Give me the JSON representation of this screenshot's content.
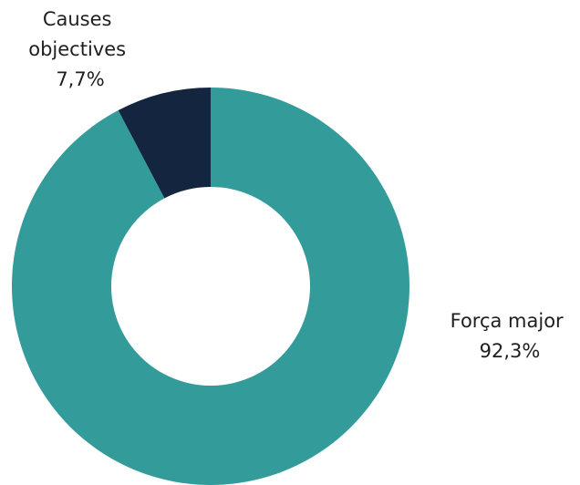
{
  "chart_data": {
    "type": "pie",
    "variant": "donut",
    "title": "",
    "slices": [
      {
        "name": "Causes objectives",
        "label_lines": [
          "Causes",
          "objectives"
        ],
        "value": 7.7,
        "value_label": "7,7%",
        "color": "#14263f"
      },
      {
        "name": "Força major",
        "label_lines": [
          "Força major"
        ],
        "value": 92.3,
        "value_label": "92,3%",
        "color": "#339b9a"
      }
    ]
  }
}
